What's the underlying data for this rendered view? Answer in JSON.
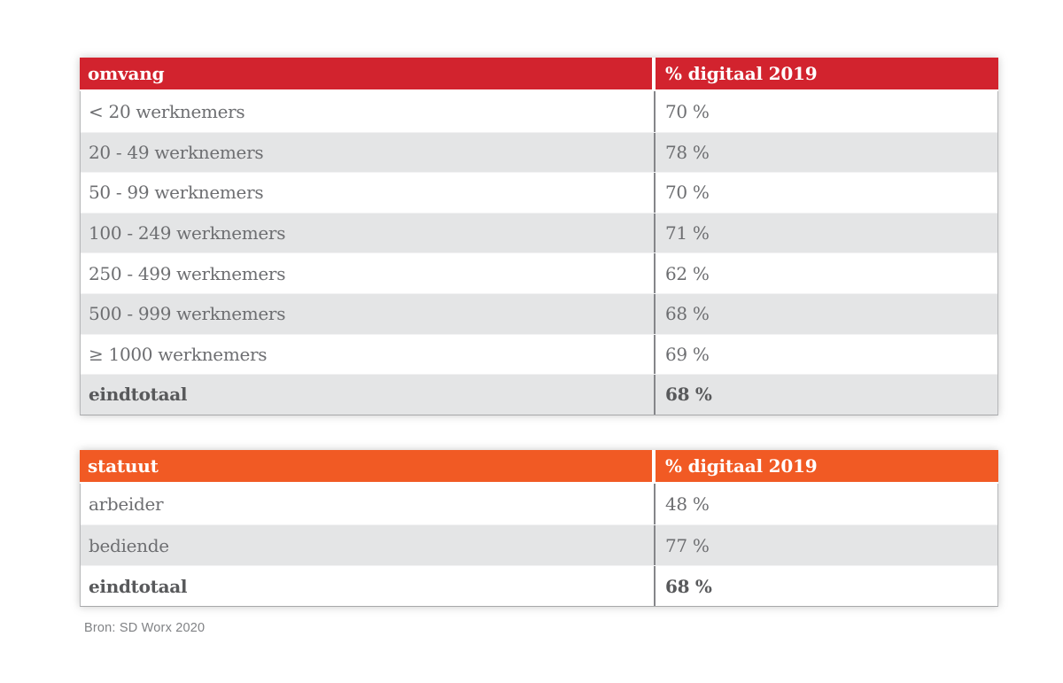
{
  "colors": {
    "table1_header_bg": "#d2232e",
    "table2_header_bg": "#f15a24",
    "zebra_row_bg": "#e4e5e6",
    "body_text": "#6d6e71",
    "header_text": "#ffffff"
  },
  "tables": [
    {
      "id": "omvang",
      "header": {
        "col1": "omvang",
        "col2": "% digitaal 2019"
      },
      "rows": [
        {
          "label": "< 20 werknemers",
          "value": "70 %"
        },
        {
          "label": "20 - 49 werknemers",
          "value": "78 %"
        },
        {
          "label": "50 - 99 werknemers",
          "value": "70 %"
        },
        {
          "label": "100 - 249 werknemers",
          "value": "71 %"
        },
        {
          "label": "250 - 499 werknemers",
          "value": "62 %"
        },
        {
          "label": "500 - 999 werknemers",
          "value": "68 %"
        },
        {
          "label": "≥ 1000 werknemers",
          "value": "69 %"
        },
        {
          "label": "eindtotaal",
          "value": "68 %"
        }
      ]
    },
    {
      "id": "statuut",
      "header": {
        "col1": "statuut",
        "col2": "% digitaal 2019"
      },
      "rows": [
        {
          "label": "arbeider",
          "value": "48 %"
        },
        {
          "label": "bediende",
          "value": "77 %"
        },
        {
          "label": "eindtotaal",
          "value": "68 %"
        }
      ]
    }
  ],
  "source_note": "Bron: SD Worx 2020"
}
